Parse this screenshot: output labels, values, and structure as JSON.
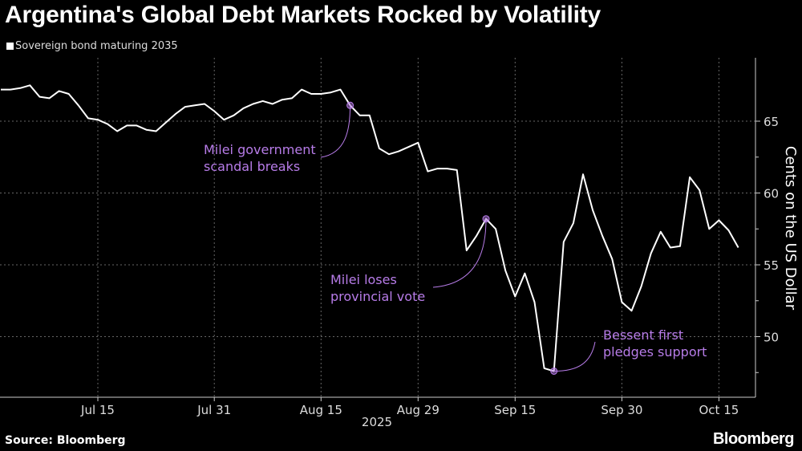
{
  "chart_data": {
    "type": "line",
    "title": "Argentina's Global Debt Markets Rocked by Volatility",
    "ylabel": "Cents on the US Dollar",
    "xlabel": "2025",
    "ylim": [
      45,
      69
    ],
    "yticks": [
      50,
      55,
      60,
      65
    ],
    "xticks": [
      {
        "date": "Jul 15",
        "label": "Jul 15"
      },
      {
        "date": "Jul 31",
        "label": "Jul 31"
      },
      {
        "date": "Aug 15",
        "label": "Aug 15"
      },
      {
        "date": "Aug 29",
        "label": "Aug 29"
      },
      {
        "date": "Sep 15",
        "label": "Sep 15"
      },
      {
        "date": "Sep 30",
        "label": "Sep 30"
      },
      {
        "date": "Oct 15",
        "label": "Oct 15"
      }
    ],
    "grid": true,
    "legend_position": "top-left",
    "series": [
      {
        "name": "Sovereign bond maturing 2035",
        "color": "#ffffff",
        "dates": [
          "Jun 30",
          "Jul 1",
          "Jul 2",
          "Jul 3",
          "Jul 7",
          "Jul 8",
          "Jul 9",
          "Jul 10",
          "Jul 11",
          "Jul 14",
          "Jul 15",
          "Jul 16",
          "Jul 17",
          "Jul 18",
          "Jul 21",
          "Jul 22",
          "Jul 23",
          "Jul 24",
          "Jul 25",
          "Jul 28",
          "Jul 29",
          "Jul 30",
          "Jul 31",
          "Aug 1",
          "Aug 4",
          "Aug 5",
          "Aug 6",
          "Aug 7",
          "Aug 8",
          "Aug 11",
          "Aug 12",
          "Aug 13",
          "Aug 14",
          "Aug 15",
          "Aug 18",
          "Aug 19",
          "Aug 20",
          "Aug 21",
          "Aug 22",
          "Aug 25",
          "Aug 26",
          "Aug 27",
          "Aug 28",
          "Aug 29",
          "Sep 2",
          "Sep 3",
          "Sep 4",
          "Sep 5",
          "Sep 8",
          "Sep 9",
          "Sep 10",
          "Sep 11",
          "Sep 12",
          "Sep 15",
          "Sep 16",
          "Sep 17",
          "Sep 18",
          "Sep 19",
          "Sep 22",
          "Sep 23",
          "Sep 24",
          "Sep 25",
          "Sep 26",
          "Sep 29",
          "Sep 30",
          "Oct 1",
          "Oct 2",
          "Oct 3",
          "Oct 6",
          "Oct 7",
          "Oct 8",
          "Oct 9",
          "Oct 10",
          "Oct 14",
          "Oct 15",
          "Oct 16",
          "Oct 17"
        ],
        "values": [
          67.2,
          67.2,
          67.3,
          67.5,
          66.7,
          66.6,
          67.1,
          66.9,
          66.1,
          65.2,
          65.1,
          64.8,
          64.3,
          64.7,
          64.7,
          64.4,
          64.3,
          64.9,
          65.5,
          66.0,
          66.1,
          66.2,
          65.7,
          65.1,
          65.4,
          65.9,
          66.2,
          66.4,
          66.2,
          66.5,
          66.6,
          67.2,
          66.9,
          66.9,
          67.0,
          67.2,
          66.1,
          65.4,
          65.4,
          63.1,
          62.7,
          62.9,
          63.2,
          63.5,
          61.5,
          61.7,
          61.7,
          61.6,
          56.0,
          57.0,
          58.2,
          57.5,
          54.6,
          52.8,
          54.4,
          52.4,
          47.8,
          47.6,
          56.6,
          57.9,
          61.3,
          58.8,
          57.0,
          55.4,
          52.4,
          51.8,
          53.5,
          55.8,
          57.3,
          56.2,
          56.3,
          61.1,
          60.2,
          57.5,
          58.1,
          57.4,
          56.2
        ]
      }
    ],
    "annotations": [
      {
        "date": "Aug 20",
        "lines": [
          "Milei government",
          "scandal breaks"
        ]
      },
      {
        "date": "Sep 10",
        "lines": [
          "Milei loses",
          "provincial vote"
        ]
      },
      {
        "date": "Sep 19",
        "lines": [
          "Bessent first",
          "pledges support"
        ]
      }
    ],
    "annotation_color": "#b77ce8"
  },
  "footer": {
    "source": "Source: Bloomberg",
    "brand": "Bloomberg"
  }
}
